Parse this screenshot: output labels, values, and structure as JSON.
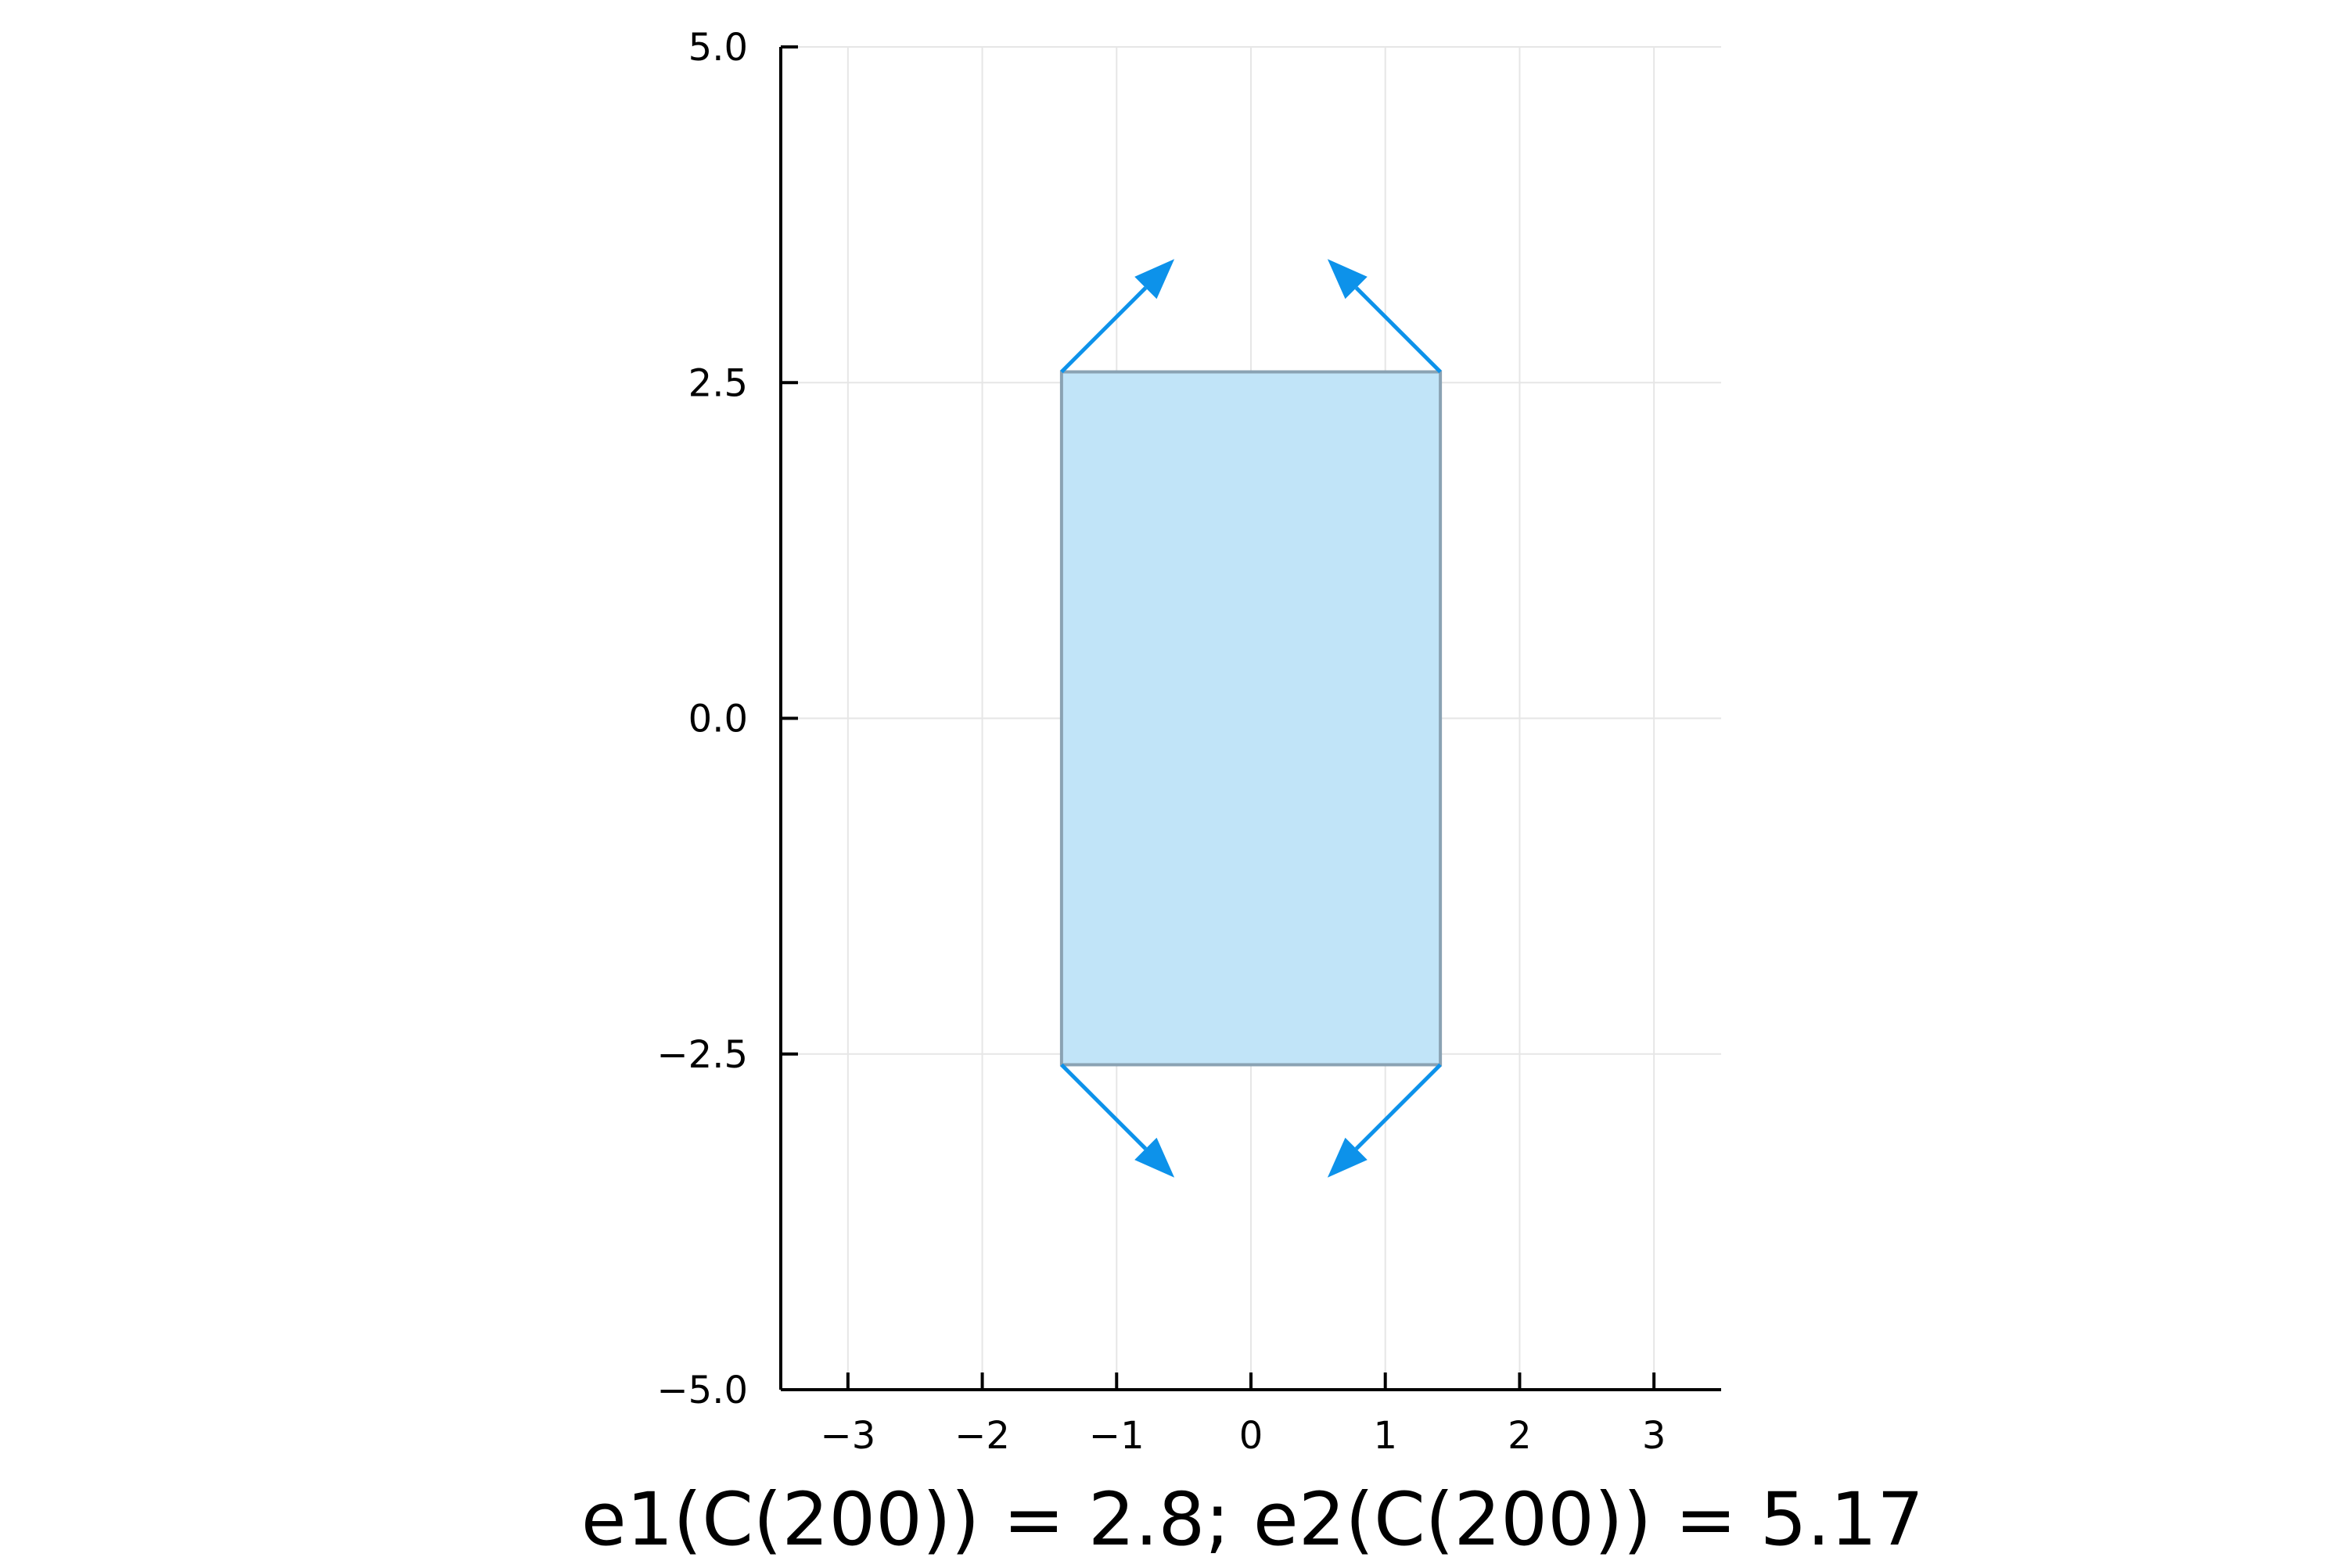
{
  "caption": "e1(C(200)) = 2.8; e2(C(200)) = 5.17",
  "chart_data": {
    "type": "area",
    "title": "",
    "xlabel": "",
    "ylabel": "",
    "xlim": [
      -3.5,
      3.5
    ],
    "ylim": [
      -5,
      5
    ],
    "grid": true,
    "aspect": "equal",
    "x_ticks": [
      -3,
      -2,
      -1,
      0,
      1,
      2,
      3
    ],
    "x_tick_labels": [
      "−3",
      "−2",
      "−1",
      "0",
      "1",
      "2",
      "3"
    ],
    "y_ticks": [
      -5,
      -2.5,
      0,
      2.5,
      5
    ],
    "y_tick_labels": [
      "−5.0",
      "−2.5",
      "0.0",
      "2.5",
      "5.0"
    ],
    "rectangle": {
      "x": [
        -1.41,
        1.41
      ],
      "y": [
        -2.58,
        2.58
      ],
      "fill_color": "#c1e4f8",
      "edge_color": "#8aa2b3"
    },
    "arrows": [
      {
        "from": [
          -1.41,
          2.58
        ],
        "to": [
          -0.57,
          3.42
        ]
      },
      {
        "from": [
          1.41,
          2.58
        ],
        "to": [
          0.57,
          3.42
        ]
      },
      {
        "from": [
          -1.41,
          -2.58
        ],
        "to": [
          -0.57,
          -3.42
        ]
      },
      {
        "from": [
          1.41,
          -2.58
        ],
        "to": [
          0.57,
          -3.42
        ]
      }
    ],
    "arrow_color": "#0d92ea",
    "axis_color": "#000000",
    "grid_color": "#e6e6e6"
  }
}
